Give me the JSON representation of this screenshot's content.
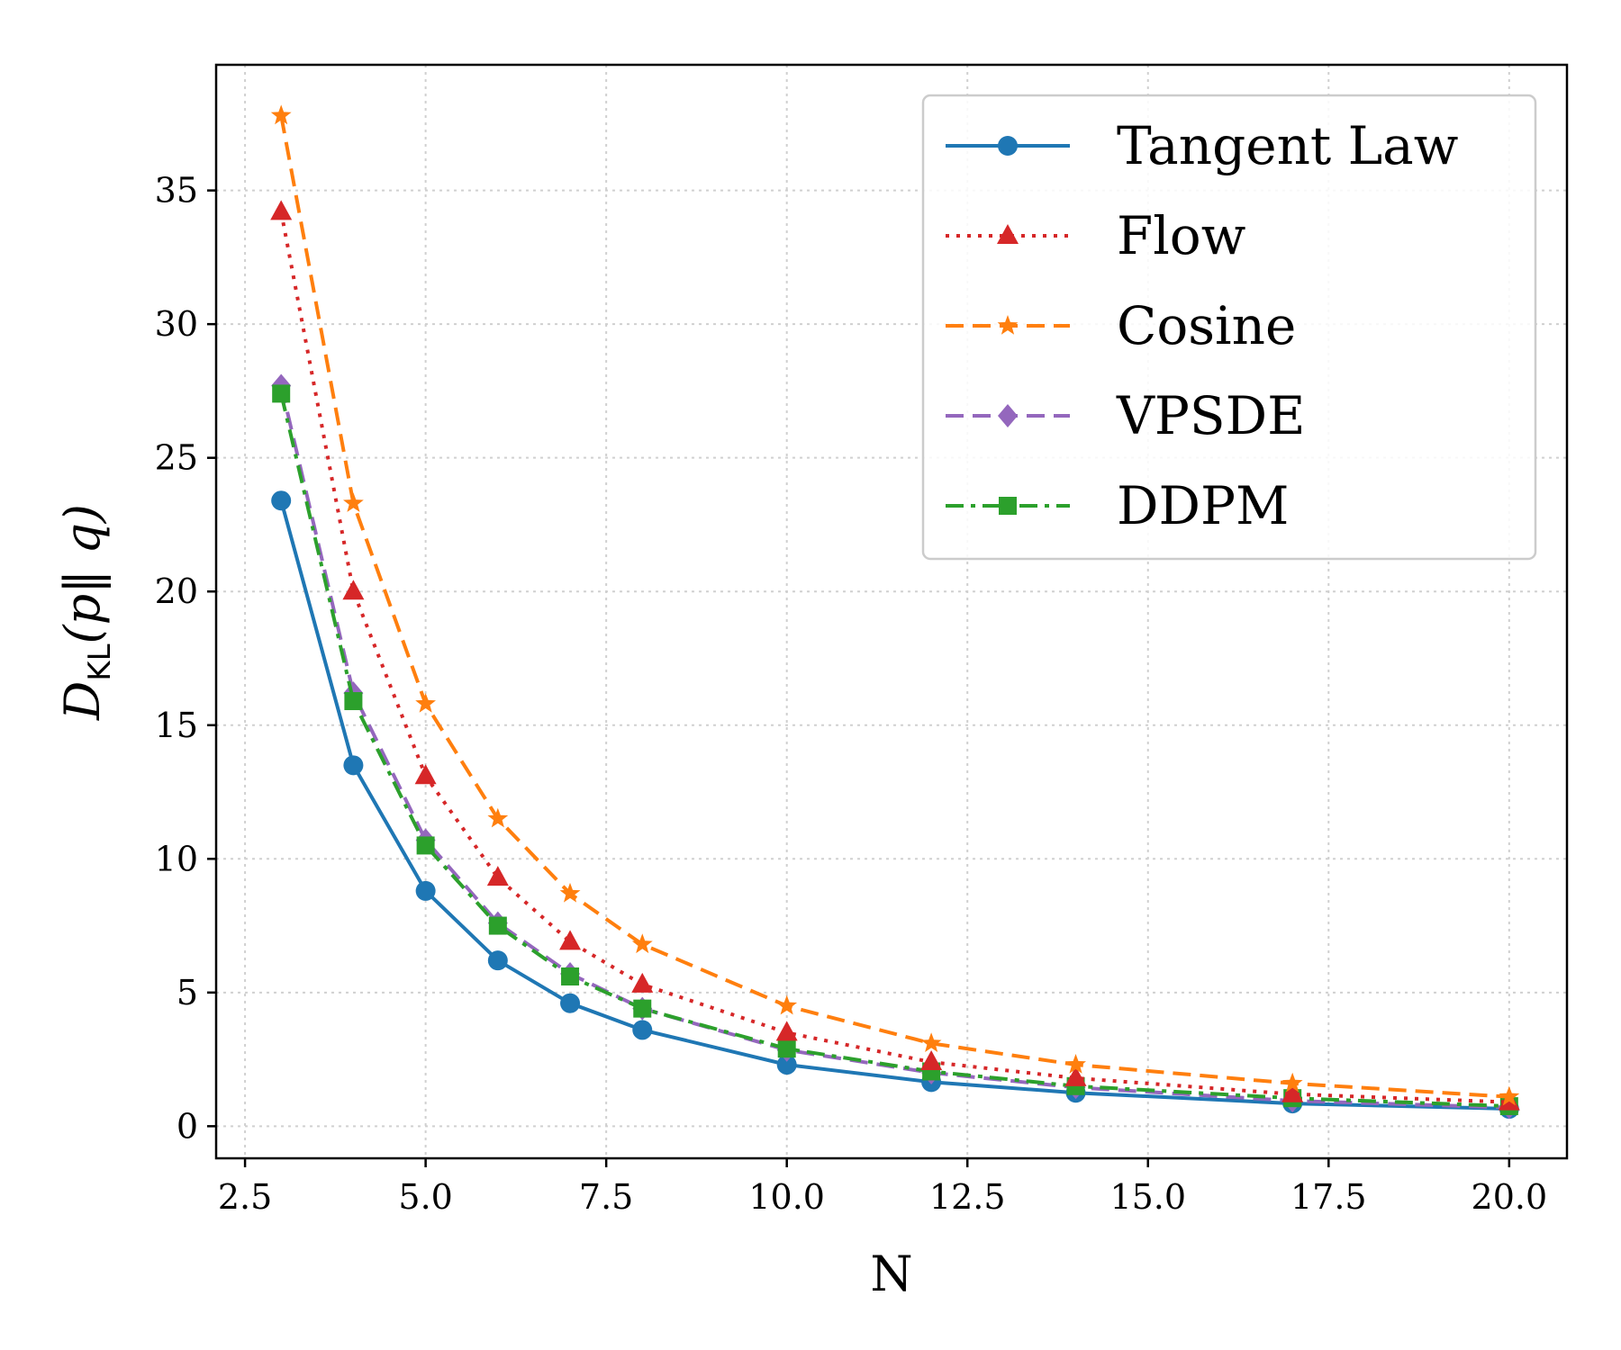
{
  "chart_data": {
    "type": "line",
    "title": "",
    "xlabel": "N",
    "ylabel": "D_KL(p‖q)",
    "ylabel_parts": {
      "main": "D",
      "sub": "KL",
      "args": "(p‖ q)"
    },
    "xlim": [
      2.1,
      20.8
    ],
    "ylim": [
      -1.2,
      39.7
    ],
    "x_ticks": [
      2.5,
      5.0,
      7.5,
      10.0,
      12.5,
      15.0,
      17.5,
      20.0
    ],
    "x_tick_labels": [
      "2.5",
      "5.0",
      "7.5",
      "10.0",
      "12.5",
      "15.0",
      "17.5",
      "20.0"
    ],
    "y_ticks": [
      0,
      5,
      10,
      15,
      20,
      25,
      30,
      35
    ],
    "y_tick_labels": [
      "0",
      "5",
      "10",
      "15",
      "20",
      "25",
      "30",
      "35"
    ],
    "grid": true,
    "legend_position": "top-right",
    "x": [
      3,
      4,
      5,
      6,
      7,
      8,
      10,
      12,
      14,
      17,
      20
    ],
    "series": [
      {
        "name": "Tangent Law",
        "color": "#1f77b4",
        "marker": "circle",
        "linestyle": "solid",
        "values": [
          23.4,
          13.5,
          8.8,
          6.2,
          4.6,
          3.6,
          2.3,
          1.65,
          1.25,
          0.85,
          0.65
        ]
      },
      {
        "name": "Flow",
        "color": "#d62728",
        "marker": "triangle",
        "linestyle": "dotted",
        "values": [
          34.2,
          20.0,
          13.1,
          9.3,
          6.9,
          5.3,
          3.5,
          2.4,
          1.8,
          1.2,
          0.9
        ]
      },
      {
        "name": "Cosine",
        "color": "#ff7f0e",
        "marker": "star",
        "linestyle": "dashed",
        "values": [
          37.8,
          23.3,
          15.8,
          11.5,
          8.7,
          6.8,
          4.5,
          3.1,
          2.3,
          1.6,
          1.1
        ]
      },
      {
        "name": "VPSDE",
        "color": "#9467bd",
        "marker": "diamond",
        "linestyle": "dashed",
        "values": [
          27.7,
          16.2,
          10.7,
          7.6,
          5.7,
          4.4,
          2.85,
          2.0,
          1.45,
          0.95,
          0.7
        ]
      },
      {
        "name": "DDPM",
        "color": "#2ca02c",
        "marker": "square",
        "linestyle": "dashdot",
        "values": [
          27.4,
          15.9,
          10.5,
          7.5,
          5.6,
          4.4,
          2.9,
          2.05,
          1.5,
          1.05,
          0.75
        ]
      }
    ]
  }
}
